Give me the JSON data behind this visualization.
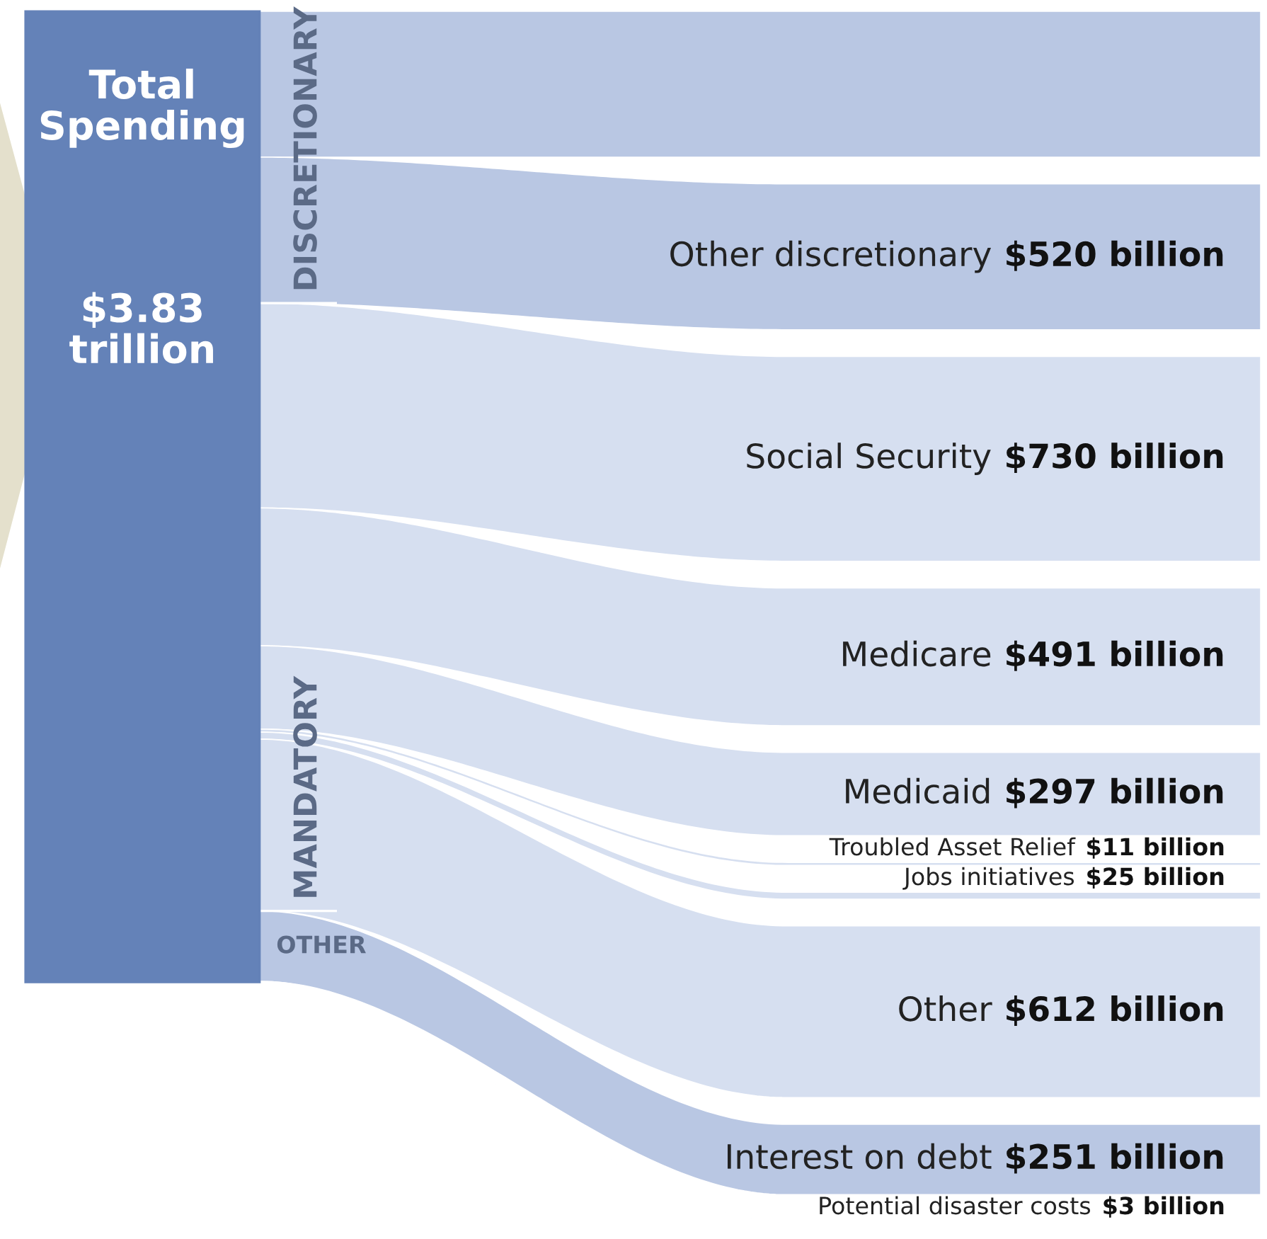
{
  "chart_data": {
    "type": "other",
    "title": "Total Spending",
    "subtitle": "$3.83 trillion",
    "color": "#6482b8",
    "categories": [
      null,
      "Other discretionary",
      "Social Security",
      "Medicare",
      "Medicaid",
      "Troubled Asset Relief",
      "Jobs initiatives",
      "Other",
      "Interest on debt",
      "Potential disaster costs"
    ],
    "annotations": [
      "DISCRETIONARY",
      "MANDATORY",
      "OTHER"
    ],
    "series": [
      {
        "color": "#b9c7e3",
        "values": [
          null,
          520,
          null,
          null,
          null,
          null,
          null,
          null,
          null,
          null
        ],
        "value_labels": [
          null,
          "$520 billion",
          null,
          null,
          null,
          null,
          null,
          null,
          null,
          null
        ]
      },
      {
        "color": "#d6dff0",
        "values": [
          null,
          null,
          730,
          491,
          297,
          11,
          25,
          612,
          null,
          null
        ],
        "value_labels": [
          null,
          null,
          "$730 billion",
          "$491 billion",
          "$297 billion",
          "$11 billion",
          "$25 billion",
          "$612 billion",
          null,
          null
        ]
      },
      {
        "color": "#b9c7e3",
        "values": [
          null,
          null,
          null,
          null,
          null,
          null,
          null,
          null,
          251,
          3
        ],
        "value_labels": [
          null,
          null,
          null,
          null,
          null,
          null,
          null,
          null,
          "$251 billion",
          "$3 billion"
        ]
      }
    ]
  }
}
